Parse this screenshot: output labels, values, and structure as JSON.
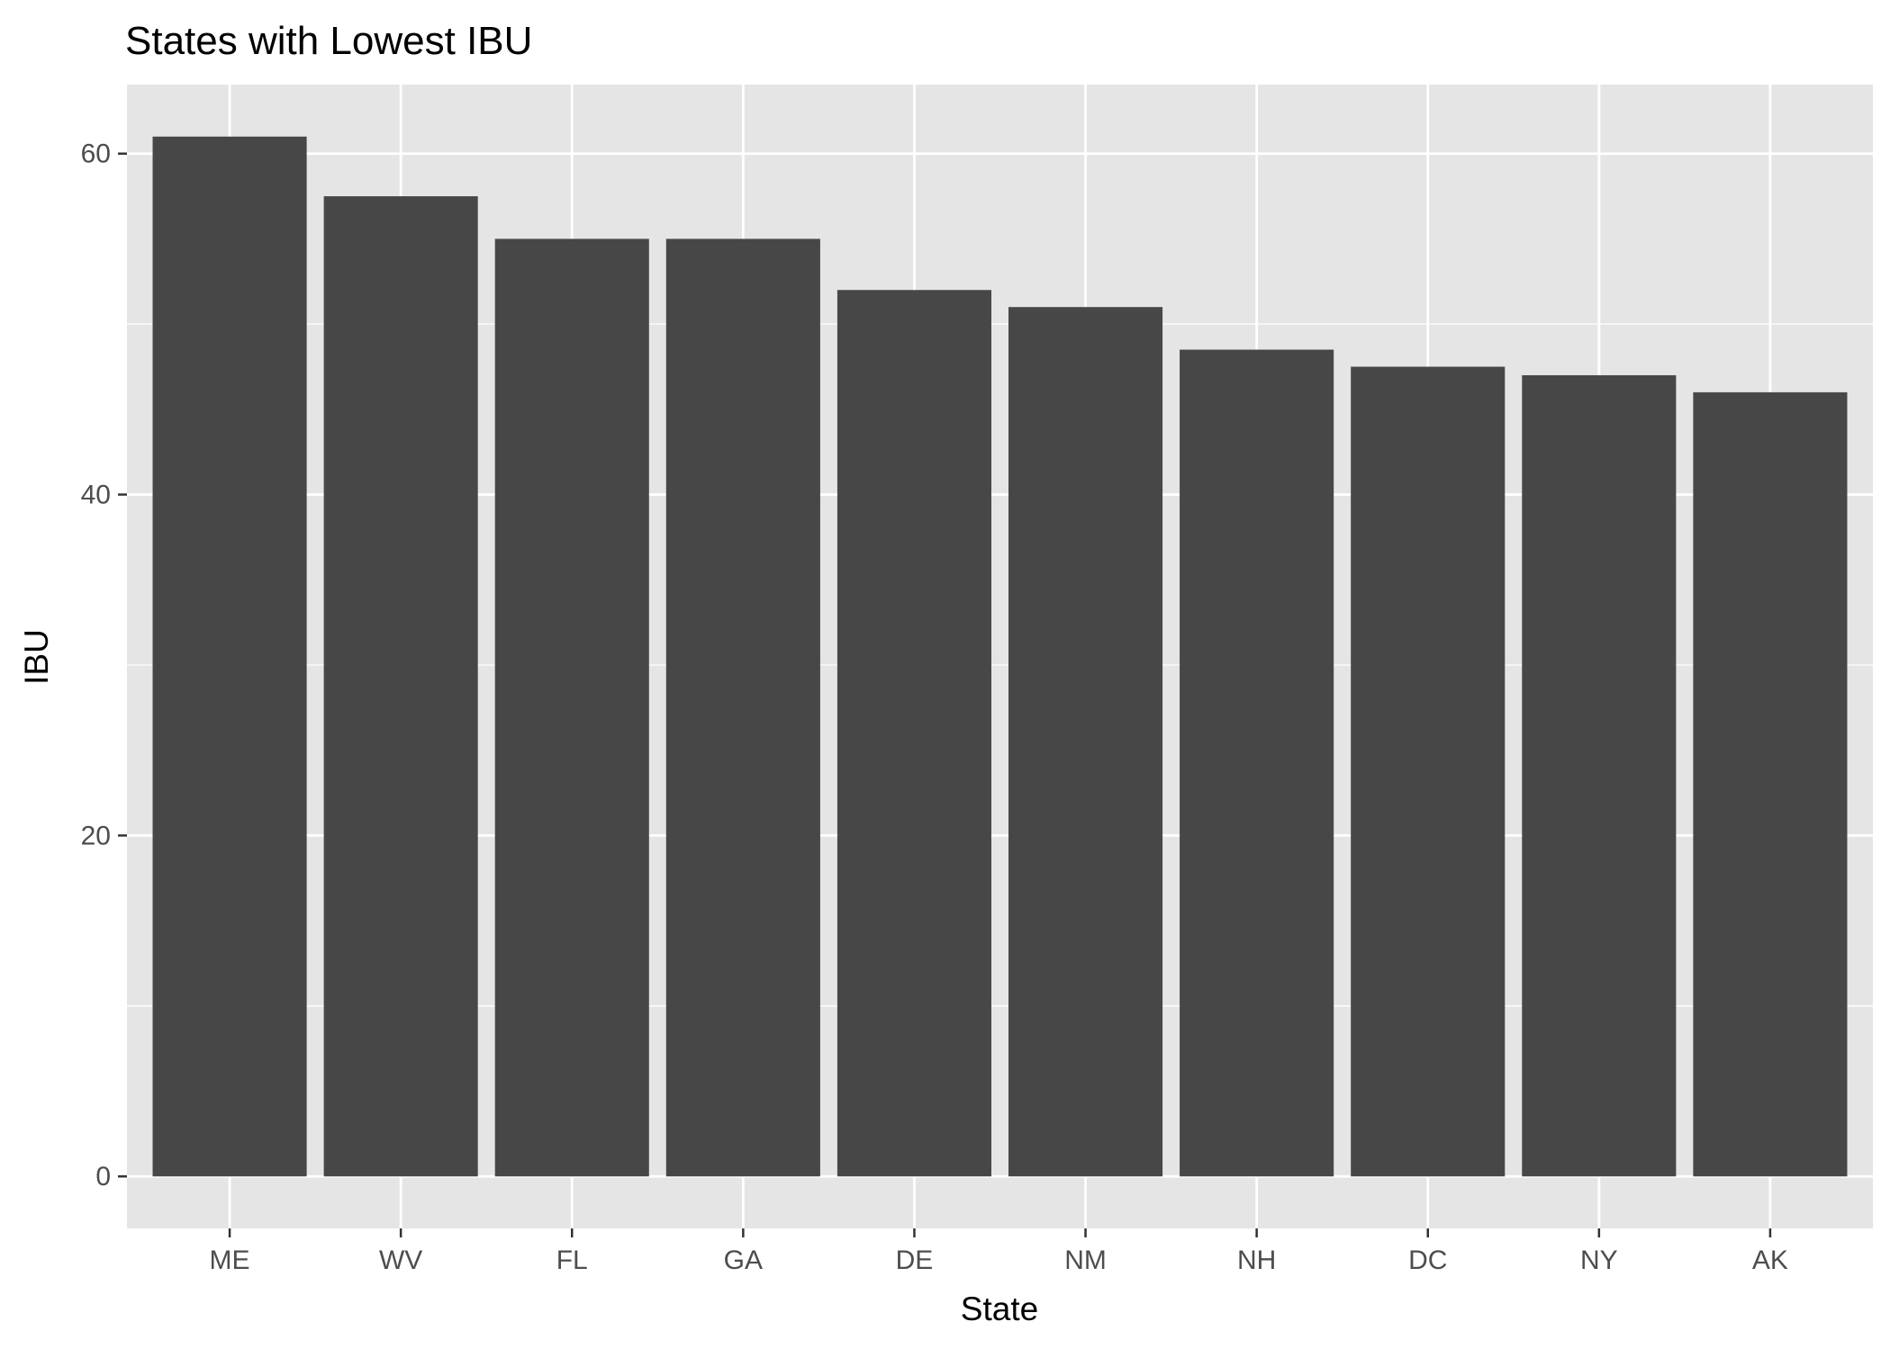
{
  "chart_data": {
    "type": "bar",
    "title": "States with Lowest IBU",
    "xlabel": "State",
    "ylabel": "IBU",
    "categories": [
      "ME",
      "WV",
      "FL",
      "GA",
      "DE",
      "NM",
      "NH",
      "DC",
      "NY",
      "AK"
    ],
    "values": [
      61,
      57.5,
      55,
      55,
      52,
      51,
      48.5,
      47.5,
      47,
      46
    ],
    "ylim": [
      -3.05,
      64.05
    ],
    "yticks": [
      0,
      20,
      40,
      60
    ],
    "grid": true,
    "legend": "none",
    "colors": {
      "bar": "#474747",
      "panel": "#e5e5e5",
      "gridline": "#ffffff",
      "tick_label": "#4d4d4d"
    }
  }
}
